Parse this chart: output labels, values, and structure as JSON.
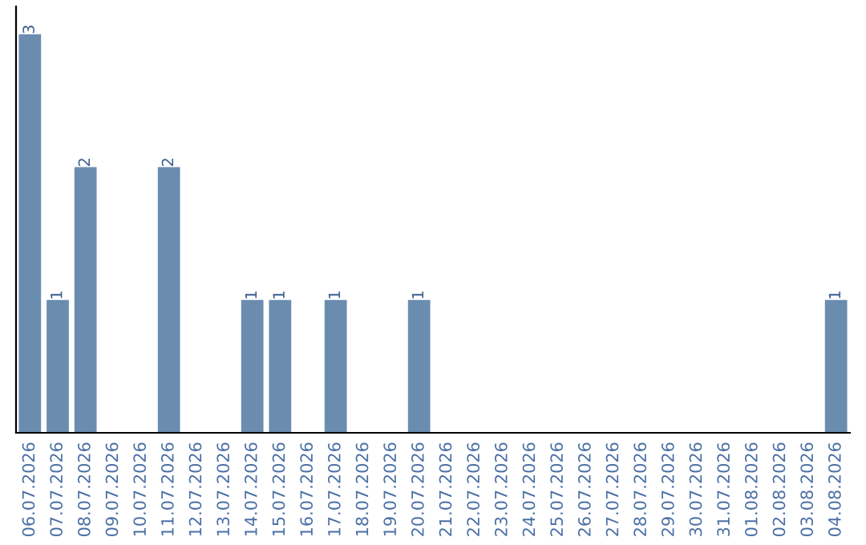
{
  "chart_data": {
    "type": "bar",
    "categories": [
      "06.07.2026",
      "07.07.2026",
      "08.07.2026",
      "09.07.2026",
      "10.07.2026",
      "11.07.2026",
      "12.07.2026",
      "13.07.2026",
      "14.07.2026",
      "15.07.2026",
      "16.07.2026",
      "17.07.2026",
      "18.07.2026",
      "19.07.2026",
      "20.07.2026",
      "21.07.2026",
      "22.07.2026",
      "23.07.2026",
      "24.07.2026",
      "25.07.2026",
      "26.07.2026",
      "27.07.2026",
      "28.07.2026",
      "29.07.2026",
      "30.07.2026",
      "31.07.2026",
      "01.08.2026",
      "02.08.2026",
      "03.08.2026",
      "04.08.2026"
    ],
    "values": [
      3,
      1,
      2,
      0,
      0,
      2,
      0,
      0,
      1,
      1,
      0,
      1,
      0,
      0,
      1,
      0,
      0,
      0,
      0,
      0,
      0,
      0,
      0,
      0,
      0,
      0,
      0,
      0,
      0,
      1
    ],
    "value_labels": [
      "3",
      "1",
      "2",
      null,
      null,
      "2",
      null,
      null,
      "1",
      "1",
      null,
      "1",
      null,
      null,
      "1",
      null,
      null,
      null,
      null,
      null,
      null,
      null,
      null,
      null,
      null,
      null,
      null,
      null,
      null,
      "1"
    ],
    "color": "#6a8caf",
    "tick_labels": "x",
    "grid": false,
    "legend": false
  }
}
